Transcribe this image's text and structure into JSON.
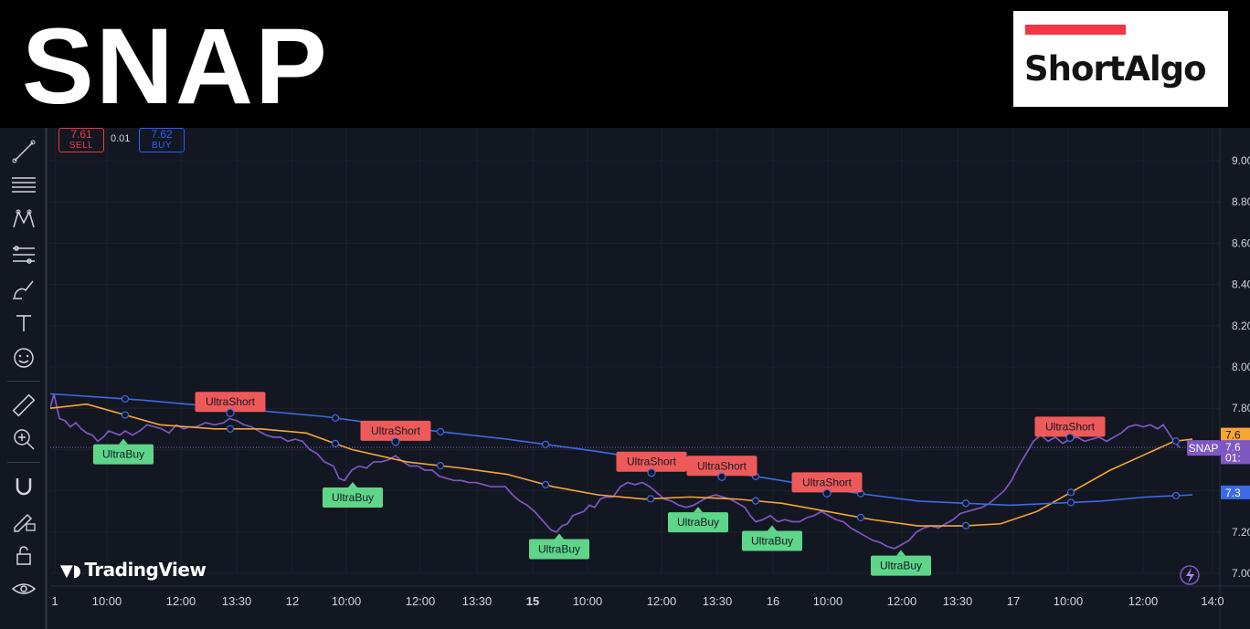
{
  "banner": {
    "ticker": "SNAP",
    "brand_name": "ShortAlgo",
    "brand_color": "#f23645"
  },
  "order_panel": {
    "sell_price": "7.61",
    "sell_label": "SELL",
    "spread": "0.01",
    "buy_price": "7.62",
    "buy_label": "BUY"
  },
  "watermark": "TradingView",
  "toolbar_icons": [
    "trend-line-icon",
    "horizontal-lines-icon",
    "pattern-icon",
    "fib-icon",
    "brush-icon",
    "text-icon",
    "emoji-icon",
    "ruler-icon",
    "zoom-icon",
    "magnet-icon",
    "lock-pencil-icon",
    "lock-icon",
    "eye-icon"
  ],
  "colors": {
    "background": "#131722",
    "price_line": "#7e57c2",
    "orange_ma": "#f7a537",
    "blue_ma": "#3d6ae5",
    "signal_short": "#ee5a5a",
    "signal_buy": "#5ed68a"
  },
  "chart_data": {
    "type": "line",
    "symbol": "SNAP",
    "y_ticks": [
      "9.00",
      "8.80",
      "8.60",
      "8.40",
      "8.20",
      "8.00",
      "7.80",
      "7.60",
      "7.40",
      "7.20",
      "7.00"
    ],
    "ylim": [
      6.95,
      9.2
    ],
    "x_ticks": [
      "1",
      "10:00",
      "12:00",
      "13:30",
      "12",
      "10:00",
      "12:00",
      "13:30",
      "15",
      "10:00",
      "12:00",
      "13:30",
      "16",
      "10:00",
      "12:00",
      "13:30",
      "17",
      "10:00",
      "12:00",
      "14:0"
    ],
    "bold_x_ticks": [
      "15"
    ],
    "series": [
      {
        "key": "price",
        "points": [
          [
            0,
            7.8
          ],
          [
            4,
            7.87
          ],
          [
            10,
            7.75
          ],
          [
            16,
            7.74
          ],
          [
            22,
            7.71
          ],
          [
            28,
            7.73
          ],
          [
            34,
            7.7
          ],
          [
            40,
            7.68
          ],
          [
            46,
            7.67
          ],
          [
            52,
            7.64
          ],
          [
            58,
            7.66
          ],
          [
            64,
            7.69
          ],
          [
            70,
            7.68
          ],
          [
            76,
            7.67
          ],
          [
            82,
            7.69
          ],
          [
            90,
            7.67
          ],
          [
            98,
            7.69
          ],
          [
            106,
            7.72
          ],
          [
            114,
            7.71
          ],
          [
            122,
            7.7
          ],
          [
            130,
            7.68
          ],
          [
            138,
            7.72
          ],
          [
            146,
            7.7
          ],
          [
            152,
            7.71
          ],
          [
            160,
            7.71
          ],
          [
            170,
            7.73
          ],
          [
            180,
            7.72
          ],
          [
            190,
            7.73
          ],
          [
            196,
            7.75
          ],
          [
            204,
            7.74
          ],
          [
            212,
            7.72
          ],
          [
            220,
            7.71
          ],
          [
            228,
            7.69
          ],
          [
            236,
            7.67
          ],
          [
            244,
            7.66
          ],
          [
            252,
            7.66
          ],
          [
            260,
            7.64
          ],
          [
            268,
            7.65
          ],
          [
            276,
            7.64
          ],
          [
            284,
            7.6
          ],
          [
            292,
            7.58
          ],
          [
            300,
            7.54
          ],
          [
            310,
            7.52
          ],
          [
            316,
            7.46
          ],
          [
            322,
            7.45
          ],
          [
            330,
            7.5
          ],
          [
            338,
            7.52
          ],
          [
            346,
            7.51
          ],
          [
            354,
            7.54
          ],
          [
            362,
            7.54
          ],
          [
            370,
            7.55
          ],
          [
            378,
            7.57
          ],
          [
            386,
            7.54
          ],
          [
            394,
            7.52
          ],
          [
            402,
            7.52
          ],
          [
            410,
            7.5
          ],
          [
            418,
            7.5
          ],
          [
            426,
            7.47
          ],
          [
            434,
            7.46
          ],
          [
            442,
            7.45
          ],
          [
            450,
            7.45
          ],
          [
            458,
            7.44
          ],
          [
            466,
            7.44
          ],
          [
            474,
            7.43
          ],
          [
            482,
            7.42
          ],
          [
            490,
            7.42
          ],
          [
            498,
            7.42
          ],
          [
            506,
            7.38
          ],
          [
            514,
            7.35
          ],
          [
            522,
            7.33
          ],
          [
            530,
            7.3
          ],
          [
            536,
            7.27
          ],
          [
            542,
            7.24
          ],
          [
            548,
            7.21
          ],
          [
            554,
            7.2
          ],
          [
            560,
            7.23
          ],
          [
            566,
            7.24
          ],
          [
            572,
            7.28
          ],
          [
            578,
            7.29
          ],
          [
            584,
            7.3
          ],
          [
            590,
            7.33
          ],
          [
            596,
            7.32
          ],
          [
            602,
            7.36
          ],
          [
            608,
            7.37
          ],
          [
            616,
            7.37
          ],
          [
            624,
            7.42
          ],
          [
            632,
            7.44
          ],
          [
            640,
            7.43
          ],
          [
            648,
            7.44
          ],
          [
            656,
            7.42
          ],
          [
            664,
            7.39
          ],
          [
            672,
            7.36
          ],
          [
            680,
            7.35
          ],
          [
            688,
            7.33
          ],
          [
            696,
            7.32
          ],
          [
            704,
            7.33
          ],
          [
            712,
            7.35
          ],
          [
            720,
            7.37
          ],
          [
            728,
            7.38
          ],
          [
            736,
            7.37
          ],
          [
            744,
            7.36
          ],
          [
            752,
            7.34
          ],
          [
            760,
            7.32
          ],
          [
            766,
            7.28
          ],
          [
            772,
            7.25
          ],
          [
            780,
            7.26
          ],
          [
            788,
            7.28
          ],
          [
            796,
            7.25
          ],
          [
            804,
            7.26
          ],
          [
            812,
            7.25
          ],
          [
            820,
            7.25
          ],
          [
            828,
            7.27
          ],
          [
            836,
            7.28
          ],
          [
            844,
            7.3
          ],
          [
            852,
            7.28
          ],
          [
            860,
            7.26
          ],
          [
            868,
            7.25
          ],
          [
            876,
            7.22
          ],
          [
            884,
            7.2
          ],
          [
            892,
            7.18
          ],
          [
            900,
            7.16
          ],
          [
            908,
            7.15
          ],
          [
            916,
            7.13
          ],
          [
            924,
            7.12
          ],
          [
            932,
            7.14
          ],
          [
            940,
            7.16
          ],
          [
            948,
            7.2
          ],
          [
            956,
            7.22
          ],
          [
            964,
            7.23
          ],
          [
            972,
            7.22
          ],
          [
            980,
            7.24
          ],
          [
            988,
            7.26
          ],
          [
            996,
            7.29
          ],
          [
            1004,
            7.3
          ],
          [
            1012,
            7.31
          ],
          [
            1020,
            7.32
          ],
          [
            1028,
            7.34
          ],
          [
            1036,
            7.37
          ],
          [
            1044,
            7.4
          ],
          [
            1052,
            7.45
          ],
          [
            1060,
            7.52
          ],
          [
            1068,
            7.58
          ],
          [
            1076,
            7.64
          ],
          [
            1084,
            7.67
          ],
          [
            1092,
            7.64
          ],
          [
            1100,
            7.66
          ],
          [
            1108,
            7.63
          ],
          [
            1116,
            7.65
          ],
          [
            1124,
            7.66
          ],
          [
            1132,
            7.64
          ],
          [
            1140,
            7.65
          ],
          [
            1148,
            7.66
          ],
          [
            1156,
            7.64
          ],
          [
            1164,
            7.66
          ],
          [
            1172,
            7.68
          ],
          [
            1180,
            7.71
          ],
          [
            1188,
            7.72
          ],
          [
            1196,
            7.71
          ],
          [
            1204,
            7.72
          ],
          [
            1212,
            7.7
          ],
          [
            1218,
            7.72
          ],
          [
            1224,
            7.68
          ],
          [
            1230,
            7.64
          ],
          [
            1236,
            7.61
          ]
        ]
      },
      {
        "key": "orange_ma",
        "points": [
          [
            0,
            7.8
          ],
          [
            40,
            7.82
          ],
          [
            80,
            7.77
          ],
          [
            120,
            7.72
          ],
          [
            180,
            7.7
          ],
          [
            230,
            7.7
          ],
          [
            280,
            7.68
          ],
          [
            330,
            7.6
          ],
          [
            390,
            7.54
          ],
          [
            450,
            7.51
          ],
          [
            500,
            7.48
          ],
          [
            550,
            7.42
          ],
          [
            600,
            7.38
          ],
          [
            650,
            7.36
          ],
          [
            700,
            7.37
          ],
          [
            750,
            7.36
          ],
          [
            800,
            7.34
          ],
          [
            850,
            7.3
          ],
          [
            900,
            7.26
          ],
          [
            950,
            7.23
          ],
          [
            1000,
            7.23
          ],
          [
            1040,
            7.24
          ],
          [
            1080,
            7.3
          ],
          [
            1120,
            7.4
          ],
          [
            1160,
            7.5
          ],
          [
            1200,
            7.58
          ],
          [
            1230,
            7.64
          ],
          [
            1250,
            7.65
          ]
        ]
      },
      {
        "key": "blue_ma",
        "points": [
          [
            0,
            7.87
          ],
          [
            100,
            7.84
          ],
          [
            200,
            7.8
          ],
          [
            300,
            7.76
          ],
          [
            400,
            7.7
          ],
          [
            500,
            7.65
          ],
          [
            600,
            7.59
          ],
          [
            700,
            7.52
          ],
          [
            800,
            7.45
          ],
          [
            880,
            7.39
          ],
          [
            950,
            7.35
          ],
          [
            1000,
            7.34
          ],
          [
            1050,
            7.33
          ],
          [
            1100,
            7.34
          ],
          [
            1150,
            7.35
          ],
          [
            1200,
            7.37
          ],
          [
            1250,
            7.38
          ]
        ]
      }
    ],
    "series_markers": [
      {
        "series": "blue_ma",
        "at": [
          82,
          197,
          312,
          427,
          542,
          657,
          772,
          887,
          1002,
          1117,
          1232
        ]
      },
      {
        "series": "orange_ma",
        "at": [
          82,
          197,
          312,
          427,
          542,
          657,
          772,
          887,
          1002,
          1117,
          1232
        ]
      }
    ],
    "signals": [
      {
        "label": "UltraBuy",
        "type": "buy",
        "x": 80,
        "price": 7.67
      },
      {
        "label": "UltraShort",
        "type": "short",
        "x": 197,
        "price": 7.8
      },
      {
        "label": "UltraBuy",
        "type": "buy",
        "x": 331,
        "price": 7.46
      },
      {
        "label": "UltraShort",
        "type": "short",
        "x": 378,
        "price": 7.66
      },
      {
        "label": "UltraBuy",
        "type": "buy",
        "x": 557,
        "price": 7.21
      },
      {
        "label": "UltraShort",
        "type": "short",
        "x": 658,
        "price": 7.51
      },
      {
        "label": "UltraBuy",
        "type": "buy",
        "x": 709,
        "price": 7.34
      },
      {
        "label": "UltraShort",
        "type": "short",
        "x": 735,
        "price": 7.49
      },
      {
        "label": "UltraBuy",
        "type": "buy",
        "x": 790,
        "price": 7.25
      },
      {
        "label": "UltraShort",
        "type": "short",
        "x": 850,
        "price": 7.41
      },
      {
        "label": "UltraBuy",
        "type": "buy",
        "x": 931,
        "price": 7.13
      },
      {
        "label": "UltraShort",
        "type": "short",
        "x": 1116,
        "price": 7.68
      }
    ],
    "price_labels": [
      {
        "text": "7.6",
        "price": 7.67,
        "color": "#f7a537",
        "text_color": "#131722"
      },
      {
        "text": "7.6",
        "price": 7.61,
        "color": "#7e57c2",
        "text_color": "#ffffff"
      },
      {
        "text": "01:",
        "price": 7.56,
        "color": "#7e57c2",
        "text_color": "#ffffff"
      },
      {
        "text": "7.3",
        "price": 7.39,
        "color": "#3d6ae5",
        "text_color": "#ffffff"
      }
    ],
    "symbol_tag": {
      "text": "SNAP",
      "price": 7.61
    },
    "current_price": 7.61,
    "grid": true
  }
}
